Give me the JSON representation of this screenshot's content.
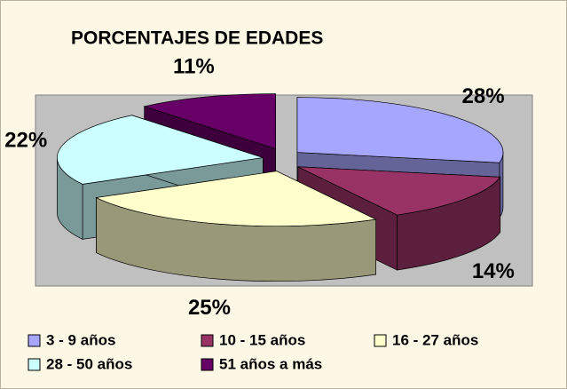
{
  "chart_data": {
    "type": "pie3d",
    "title": "PORCENTAJES DE EDADES",
    "categories": [
      "3 - 9 años",
      "10 - 15 años",
      "16 - 27 años",
      "28 - 50 años",
      "51 años a más"
    ],
    "values": [
      28,
      14,
      25,
      22,
      11
    ],
    "value_labels": [
      "28%",
      "14%",
      "25%",
      "22%",
      "11%"
    ],
    "colors": [
      "#a6a6ff",
      "#993366",
      "#ffffcc",
      "#ccffff",
      "#660066"
    ],
    "legend": "bottom"
  }
}
